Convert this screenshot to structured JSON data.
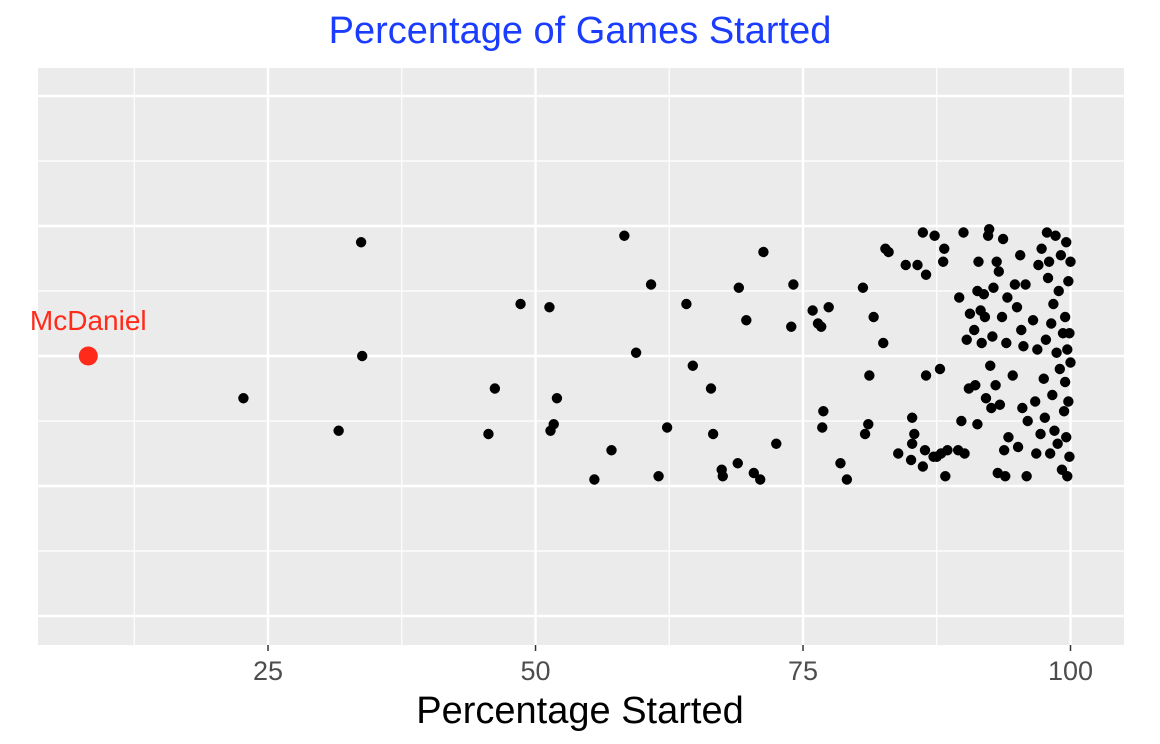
{
  "chart_data": {
    "type": "scatter",
    "title": "Percentage of Games Started",
    "xlabel": "Percentage Started",
    "ylabel": "",
    "xlim": [
      3.5,
      105
    ],
    "x_ticks": [
      25,
      50,
      75,
      100
    ],
    "x_tick_labels": [
      "25",
      "50",
      "75",
      "100"
    ],
    "grid": true,
    "jitter": "vertical (no y-axis)",
    "colors": {
      "title": "#1a3cff",
      "highlight": "#ff2a1a",
      "points": "#000000",
      "panel": "#ebebeb",
      "grid": "#ffffff"
    },
    "highlight": {
      "label": "McDaniel",
      "x": 8.2,
      "y": 0.0
    },
    "points": [
      {
        "x": 22.7,
        "y": -0.13
      },
      {
        "x": 31.6,
        "y": -0.23
      },
      {
        "x": 33.7,
        "y": 0.35
      },
      {
        "x": 33.8,
        "y": 0.0
      },
      {
        "x": 45.6,
        "y": -0.24
      },
      {
        "x": 46.2,
        "y": -0.1
      },
      {
        "x": 48.6,
        "y": 0.16
      },
      {
        "x": 51.3,
        "y": 0.15
      },
      {
        "x": 51.4,
        "y": -0.23
      },
      {
        "x": 51.7,
        "y": -0.21
      },
      {
        "x": 52.0,
        "y": -0.13
      },
      {
        "x": 55.5,
        "y": -0.38
      },
      {
        "x": 57.1,
        "y": -0.29
      },
      {
        "x": 58.3,
        "y": 0.37
      },
      {
        "x": 59.4,
        "y": 0.01
      },
      {
        "x": 60.8,
        "y": 0.22
      },
      {
        "x": 61.5,
        "y": -0.37
      },
      {
        "x": 62.3,
        "y": -0.22
      },
      {
        "x": 64.1,
        "y": 0.16
      },
      {
        "x": 64.7,
        "y": -0.03
      },
      {
        "x": 66.4,
        "y": -0.1
      },
      {
        "x": 66.6,
        "y": -0.24
      },
      {
        "x": 67.4,
        "y": -0.35
      },
      {
        "x": 67.5,
        "y": -0.37
      },
      {
        "x": 68.9,
        "y": -0.33
      },
      {
        "x": 69.0,
        "y": 0.21
      },
      {
        "x": 69.7,
        "y": 0.11
      },
      {
        "x": 70.4,
        "y": -0.36
      },
      {
        "x": 71.0,
        "y": -0.38
      },
      {
        "x": 71.3,
        "y": 0.32
      },
      {
        "x": 72.5,
        "y": -0.27
      },
      {
        "x": 73.9,
        "y": 0.09
      },
      {
        "x": 74.1,
        "y": 0.22
      },
      {
        "x": 75.9,
        "y": 0.14
      },
      {
        "x": 76.4,
        "y": 0.1
      },
      {
        "x": 76.7,
        "y": 0.09
      },
      {
        "x": 76.8,
        "y": -0.22
      },
      {
        "x": 76.9,
        "y": -0.17
      },
      {
        "x": 77.4,
        "y": 0.15
      },
      {
        "x": 78.5,
        "y": -0.33
      },
      {
        "x": 79.1,
        "y": -0.38
      },
      {
        "x": 80.6,
        "y": 0.21
      },
      {
        "x": 80.8,
        "y": -0.24
      },
      {
        "x": 81.1,
        "y": -0.21
      },
      {
        "x": 81.2,
        "y": -0.06
      },
      {
        "x": 81.6,
        "y": 0.12
      },
      {
        "x": 82.5,
        "y": 0.04
      },
      {
        "x": 82.7,
        "y": 0.33
      },
      {
        "x": 83.0,
        "y": 0.32
      },
      {
        "x": 83.9,
        "y": -0.3
      },
      {
        "x": 84.6,
        "y": 0.28
      },
      {
        "x": 85.1,
        "y": -0.32
      },
      {
        "x": 85.2,
        "y": -0.19
      },
      {
        "x": 85.2,
        "y": -0.27
      },
      {
        "x": 85.4,
        "y": -0.24
      },
      {
        "x": 85.7,
        "y": 0.28
      },
      {
        "x": 86.2,
        "y": 0.38
      },
      {
        "x": 86.2,
        "y": -0.34
      },
      {
        "x": 86.4,
        "y": -0.29
      },
      {
        "x": 86.5,
        "y": -0.06
      },
      {
        "x": 86.5,
        "y": 0.25
      },
      {
        "x": 87.2,
        "y": -0.31
      },
      {
        "x": 87.3,
        "y": 0.37
      },
      {
        "x": 87.5,
        "y": -0.31
      },
      {
        "x": 87.8,
        "y": -0.04
      },
      {
        "x": 87.9,
        "y": -0.3
      },
      {
        "x": 88.1,
        "y": 0.29
      },
      {
        "x": 88.2,
        "y": 0.33
      },
      {
        "x": 88.3,
        "y": -0.37
      },
      {
        "x": 88.5,
        "y": -0.29
      },
      {
        "x": 89.5,
        "y": -0.29
      },
      {
        "x": 89.6,
        "y": 0.18
      },
      {
        "x": 89.8,
        "y": -0.2
      },
      {
        "x": 90.0,
        "y": 0.38
      },
      {
        "x": 90.1,
        "y": -0.3
      },
      {
        "x": 90.3,
        "y": 0.05
      },
      {
        "x": 90.5,
        "y": -0.1
      },
      {
        "x": 90.6,
        "y": 0.13
      },
      {
        "x": 91.0,
        "y": 0.08
      },
      {
        "x": 91.1,
        "y": -0.09
      },
      {
        "x": 91.3,
        "y": 0.2
      },
      {
        "x": 91.3,
        "y": -0.21
      },
      {
        "x": 91.4,
        "y": 0.29
      },
      {
        "x": 91.6,
        "y": 0.14
      },
      {
        "x": 91.7,
        "y": 0.04
      },
      {
        "x": 91.9,
        "y": 0.19
      },
      {
        "x": 92.0,
        "y": 0.12
      },
      {
        "x": 92.1,
        "y": -0.13
      },
      {
        "x": 92.3,
        "y": 0.37
      },
      {
        "x": 92.4,
        "y": 0.39
      },
      {
        "x": 92.5,
        "y": -0.03
      },
      {
        "x": 92.6,
        "y": -0.16
      },
      {
        "x": 92.7,
        "y": 0.06
      },
      {
        "x": 92.8,
        "y": 0.21
      },
      {
        "x": 93.0,
        "y": -0.09
      },
      {
        "x": 93.1,
        "y": 0.29
      },
      {
        "x": 93.2,
        "y": -0.36
      },
      {
        "x": 93.3,
        "y": 0.26
      },
      {
        "x": 93.4,
        "y": -0.15
      },
      {
        "x": 93.6,
        "y": 0.12
      },
      {
        "x": 93.7,
        "y": 0.36
      },
      {
        "x": 93.8,
        "y": -0.29
      },
      {
        "x": 93.9,
        "y": -0.37
      },
      {
        "x": 94.0,
        "y": 0.04
      },
      {
        "x": 94.1,
        "y": 0.18
      },
      {
        "x": 94.2,
        "y": -0.25
      },
      {
        "x": 94.6,
        "y": -0.06
      },
      {
        "x": 94.8,
        "y": 0.22
      },
      {
        "x": 95.0,
        "y": 0.15
      },
      {
        "x": 95.1,
        "y": -0.28
      },
      {
        "x": 95.3,
        "y": 0.31
      },
      {
        "x": 95.4,
        "y": 0.08
      },
      {
        "x": 95.5,
        "y": -0.16
      },
      {
        "x": 95.6,
        "y": 0.03
      },
      {
        "x": 95.8,
        "y": 0.22
      },
      {
        "x": 95.9,
        "y": -0.37
      },
      {
        "x": 96.0,
        "y": -0.2
      },
      {
        "x": 96.5,
        "y": 0.11
      },
      {
        "x": 96.7,
        "y": -0.14
      },
      {
        "x": 96.8,
        "y": -0.3
      },
      {
        "x": 96.9,
        "y": 0.02
      },
      {
        "x": 97.0,
        "y": 0.28
      },
      {
        "x": 97.2,
        "y": -0.24
      },
      {
        "x": 97.3,
        "y": 0.33
      },
      {
        "x": 97.5,
        "y": -0.07
      },
      {
        "x": 97.6,
        "y": -0.19
      },
      {
        "x": 97.7,
        "y": 0.05
      },
      {
        "x": 97.8,
        "y": 0.38
      },
      {
        "x": 97.9,
        "y": 0.24
      },
      {
        "x": 98.0,
        "y": 0.29
      },
      {
        "x": 98.1,
        "y": -0.3
      },
      {
        "x": 98.2,
        "y": 0.1
      },
      {
        "x": 98.3,
        "y": -0.12
      },
      {
        "x": 98.4,
        "y": 0.16
      },
      {
        "x": 98.5,
        "y": -0.23
      },
      {
        "x": 98.6,
        "y": 0.37
      },
      {
        "x": 98.7,
        "y": 0.01
      },
      {
        "x": 98.8,
        "y": -0.27
      },
      {
        "x": 98.9,
        "y": 0.2
      },
      {
        "x": 99.0,
        "y": -0.04
      },
      {
        "x": 99.1,
        "y": 0.31
      },
      {
        "x": 99.2,
        "y": -0.35
      },
      {
        "x": 99.3,
        "y": 0.07
      },
      {
        "x": 99.4,
        "y": -0.17
      },
      {
        "x": 99.5,
        "y": 0.12
      },
      {
        "x": 99.5,
        "y": -0.08
      },
      {
        "x": 99.6,
        "y": 0.35
      },
      {
        "x": 99.6,
        "y": -0.25
      },
      {
        "x": 99.7,
        "y": 0.02
      },
      {
        "x": 99.7,
        "y": -0.37
      },
      {
        "x": 99.8,
        "y": 0.23
      },
      {
        "x": 99.8,
        "y": -0.14
      },
      {
        "x": 99.9,
        "y": 0.07
      },
      {
        "x": 99.9,
        "y": -0.31
      },
      {
        "x": 100.0,
        "y": 0.29
      },
      {
        "x": 100.0,
        "y": -0.02
      }
    ]
  }
}
